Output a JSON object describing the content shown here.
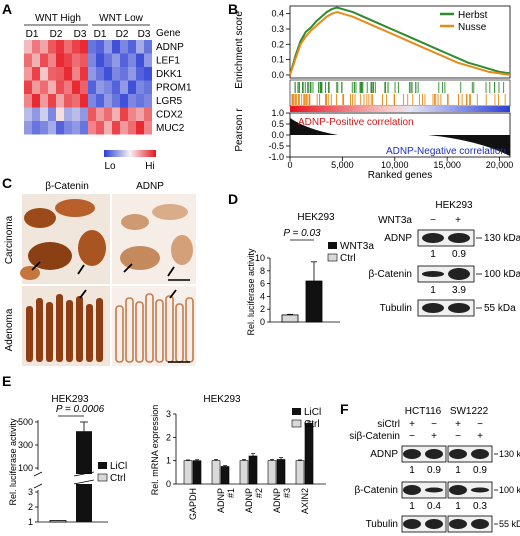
{
  "panel_a": {
    "letter": "A",
    "group_high": "WNT High",
    "group_low": "WNT Low",
    "donors": [
      "D1",
      "D2",
      "D3",
      "D1",
      "D2",
      "D3"
    ],
    "gene_header": "Gene",
    "genes": [
      "ADNP",
      "LEF1",
      "DKK1",
      "PROM1",
      "LGR5",
      "CDX2",
      "MUC2"
    ],
    "legend_lo": "Lo",
    "legend_hi": "Hi",
    "colors": {
      "low": "#2b3fd6",
      "high": "#e8141e",
      "mid": "#f7f3f3"
    },
    "matrix": [
      [
        0.25,
        0.55,
        0.35,
        0.7,
        0.85,
        0.6,
        0.8,
        0.9,
        -0.7,
        -0.8,
        -0.5,
        -0.9,
        -0.6,
        -0.8,
        -0.4,
        -0.7
      ],
      [
        0.6,
        0.3,
        0.75,
        0.5,
        0.9,
        0.8,
        0.6,
        0.7,
        -0.6,
        -0.9,
        -0.7,
        -0.5,
        -0.8,
        -0.6,
        -0.9,
        -0.5
      ],
      [
        0.4,
        0.8,
        0.2,
        0.65,
        0.7,
        0.9,
        0.5,
        0.85,
        -0.5,
        -0.7,
        -0.9,
        -0.6,
        -0.7,
        -0.5,
        -0.8,
        -0.9
      ],
      [
        0.8,
        0.4,
        0.6,
        0.3,
        0.75,
        0.55,
        0.9,
        0.65,
        -0.8,
        -0.5,
        -0.6,
        -0.8,
        -0.5,
        -0.9,
        -0.6,
        -0.7
      ],
      [
        0.5,
        0.9,
        0.4,
        0.8,
        0.35,
        0.7,
        0.6,
        0.9,
        -0.6,
        -0.8,
        -0.5,
        -0.7,
        -0.9,
        -0.6,
        -0.7,
        -0.6
      ],
      [
        -0.3,
        -0.5,
        -0.2,
        -0.6,
        0.1,
        -0.4,
        -0.3,
        -0.5,
        0.7,
        0.4,
        0.6,
        0.3,
        0.8,
        0.5,
        0.35,
        0.6
      ],
      [
        -0.5,
        -0.7,
        -0.6,
        -0.4,
        -0.8,
        -0.6,
        -0.5,
        -0.7,
        0.5,
        0.7,
        0.3,
        0.8,
        0.4,
        0.6,
        0.9,
        0.5
      ]
    ]
  },
  "panel_b": {
    "letter": "B",
    "ylabel_top": "Enrichment score",
    "ylabel_bottom": "Pearson r",
    "xlabel": "Ranked genes",
    "legend": [
      "Herbst",
      "Nusse"
    ],
    "series_colors": [
      "#2e8b2e",
      "#e88a1a"
    ],
    "yticks_top": [
      "0.4",
      "0.3",
      "0.2",
      "0.1",
      "0.0"
    ],
    "yticks_bottom": [
      "1.0",
      "0.5",
      "0.0",
      "-0.5",
      "-1.0"
    ],
    "xticks": [
      "0",
      "5,000",
      "10,000",
      "15,000",
      "20,000"
    ],
    "pos_label": "ADNP-Positive correlation",
    "neg_label": "ADNP-Negative correlation",
    "chart_data": {
      "type": "line",
      "x_range": [
        0,
        21000
      ],
      "ylim": [
        -0.02,
        0.45
      ],
      "series": [
        {
          "name": "Herbst",
          "x": [
            0,
            500,
            1000,
            1500,
            2000,
            2500,
            3000,
            3500,
            4000,
            4500,
            5000,
            6000,
            7000,
            8000,
            9000,
            10000,
            11000,
            12000,
            13000,
            14000,
            15000,
            16000,
            17000,
            18000,
            19000,
            20000,
            21000
          ],
          "y": [
            0,
            0.12,
            0.22,
            0.28,
            0.31,
            0.35,
            0.38,
            0.41,
            0.43,
            0.44,
            0.43,
            0.41,
            0.38,
            0.35,
            0.32,
            0.29,
            0.26,
            0.23,
            0.2,
            0.17,
            0.14,
            0.11,
            0.08,
            0.06,
            0.04,
            0.02,
            0.01
          ]
        },
        {
          "name": "Nusse",
          "x": [
            0,
            500,
            1000,
            1500,
            2000,
            2500,
            3000,
            3500,
            4000,
            4500,
            5000,
            6000,
            7000,
            8000,
            9000,
            10000,
            11000,
            12000,
            13000,
            14000,
            15000,
            16000,
            17000,
            18000,
            19000,
            20000,
            21000
          ],
          "y": [
            0,
            0.1,
            0.2,
            0.25,
            0.29,
            0.32,
            0.35,
            0.38,
            0.4,
            0.41,
            0.4,
            0.38,
            0.35,
            0.32,
            0.29,
            0.26,
            0.23,
            0.2,
            0.17,
            0.14,
            0.11,
            0.08,
            0.06,
            0.04,
            0.02,
            0.01,
            0.0
          ]
        }
      ]
    }
  },
  "panel_c": {
    "letter": "C",
    "col_labels": [
      "β-Catenin",
      "ADNP"
    ],
    "row_labels": [
      "Carcinoma",
      "Adenoma"
    ]
  },
  "panel_d": {
    "letter": "D",
    "title": "HEK293",
    "ylabel": "Rel. luciferase activity",
    "yticks": [
      "0",
      "2",
      "4",
      "6",
      "8",
      "10"
    ],
    "pvalue": "P = 0.03",
    "legend": [
      "WNT3a",
      "Ctrl"
    ],
    "chart_data": {
      "type": "bar",
      "categories": [
        "Ctrl",
        "WNT3a"
      ],
      "values": [
        1.1,
        6.4
      ],
      "errors": [
        0.1,
        3.0
      ],
      "ylim": [
        0,
        10
      ]
    },
    "blot": {
      "title": "HEK293",
      "treatment": "WNT3a",
      "lanes": [
        "−",
        "+"
      ],
      "rows": [
        {
          "name": "ADNP",
          "quant": [
            "1",
            "0.9"
          ],
          "marker": "130 kDa"
        },
        {
          "name": "β-Catenin",
          "quant": [
            "1",
            "3.9"
          ],
          "marker": "100 kDa"
        },
        {
          "name": "Tubulin",
          "quant": [],
          "marker": "55 kDa"
        }
      ]
    }
  },
  "panel_e": {
    "letter": "E",
    "title_left": "HEK293",
    "ylabel_left": "Rel. luciferase activity",
    "yticks_left": [
      "1",
      "2",
      "3",
      "100",
      "300",
      "500"
    ],
    "pvalue": "P = 0.0006",
    "legend_left": [
      "LiCl",
      "Ctrl"
    ],
    "chart_left": {
      "type": "bar",
      "categories": [
        "Ctrl",
        "LiCl"
      ],
      "values": [
        1.1,
        420
      ],
      "errors": [
        0.1,
        80
      ]
    },
    "title_right": "HEK293",
    "ylabel_right": "Rel. mRNA expression",
    "yticks_right": [
      "0",
      "1",
      "2",
      "3"
    ],
    "legend_right": [
      "LiCl",
      "Ctrl"
    ],
    "chart_right": {
      "type": "bar",
      "categories": [
        "GAPDH",
        "ADNP #1",
        "ADNP #2",
        "ADNP #3",
        "AXIN2"
      ],
      "series": [
        {
          "name": "Ctrl",
          "values": [
            1.0,
            1.0,
            1.0,
            1.0,
            1.0
          ],
          "errors": [
            0.03,
            0.05,
            0.05,
            0.05,
            0.03
          ]
        },
        {
          "name": "LiCl",
          "values": [
            1.0,
            0.75,
            1.2,
            1.05,
            2.6
          ],
          "errors": [
            0.04,
            0.04,
            0.1,
            0.08,
            0.06
          ]
        }
      ],
      "ylim": [
        0,
        3
      ]
    },
    "cat_lines": [
      [
        "GAPDH"
      ],
      [
        "ADNP",
        "#1"
      ],
      [
        "ADNP",
        "#2"
      ],
      [
        "ADNP",
        "#3"
      ],
      [
        "AXIN2"
      ]
    ]
  },
  "panel_f": {
    "letter": "F",
    "cells": [
      "HCT116",
      "SW1222"
    ],
    "conditions": [
      "siCtrl",
      "siβ-Catenin"
    ],
    "signs_ctrl": [
      "+",
      "−",
      "+",
      "−"
    ],
    "signs_si": [
      "−",
      "+",
      "−",
      "+"
    ],
    "rows": [
      {
        "name": "ADNP",
        "quant": [
          "1",
          "0.9",
          "1",
          "0.9"
        ],
        "marker": "130 kDa"
      },
      {
        "name": "β-Catenin",
        "quant": [
          "1",
          "0.4",
          "1",
          "0.3"
        ],
        "marker": "100 kDa"
      },
      {
        "name": "Tubulin",
        "quant": [],
        "marker": "55 kDa"
      }
    ]
  }
}
